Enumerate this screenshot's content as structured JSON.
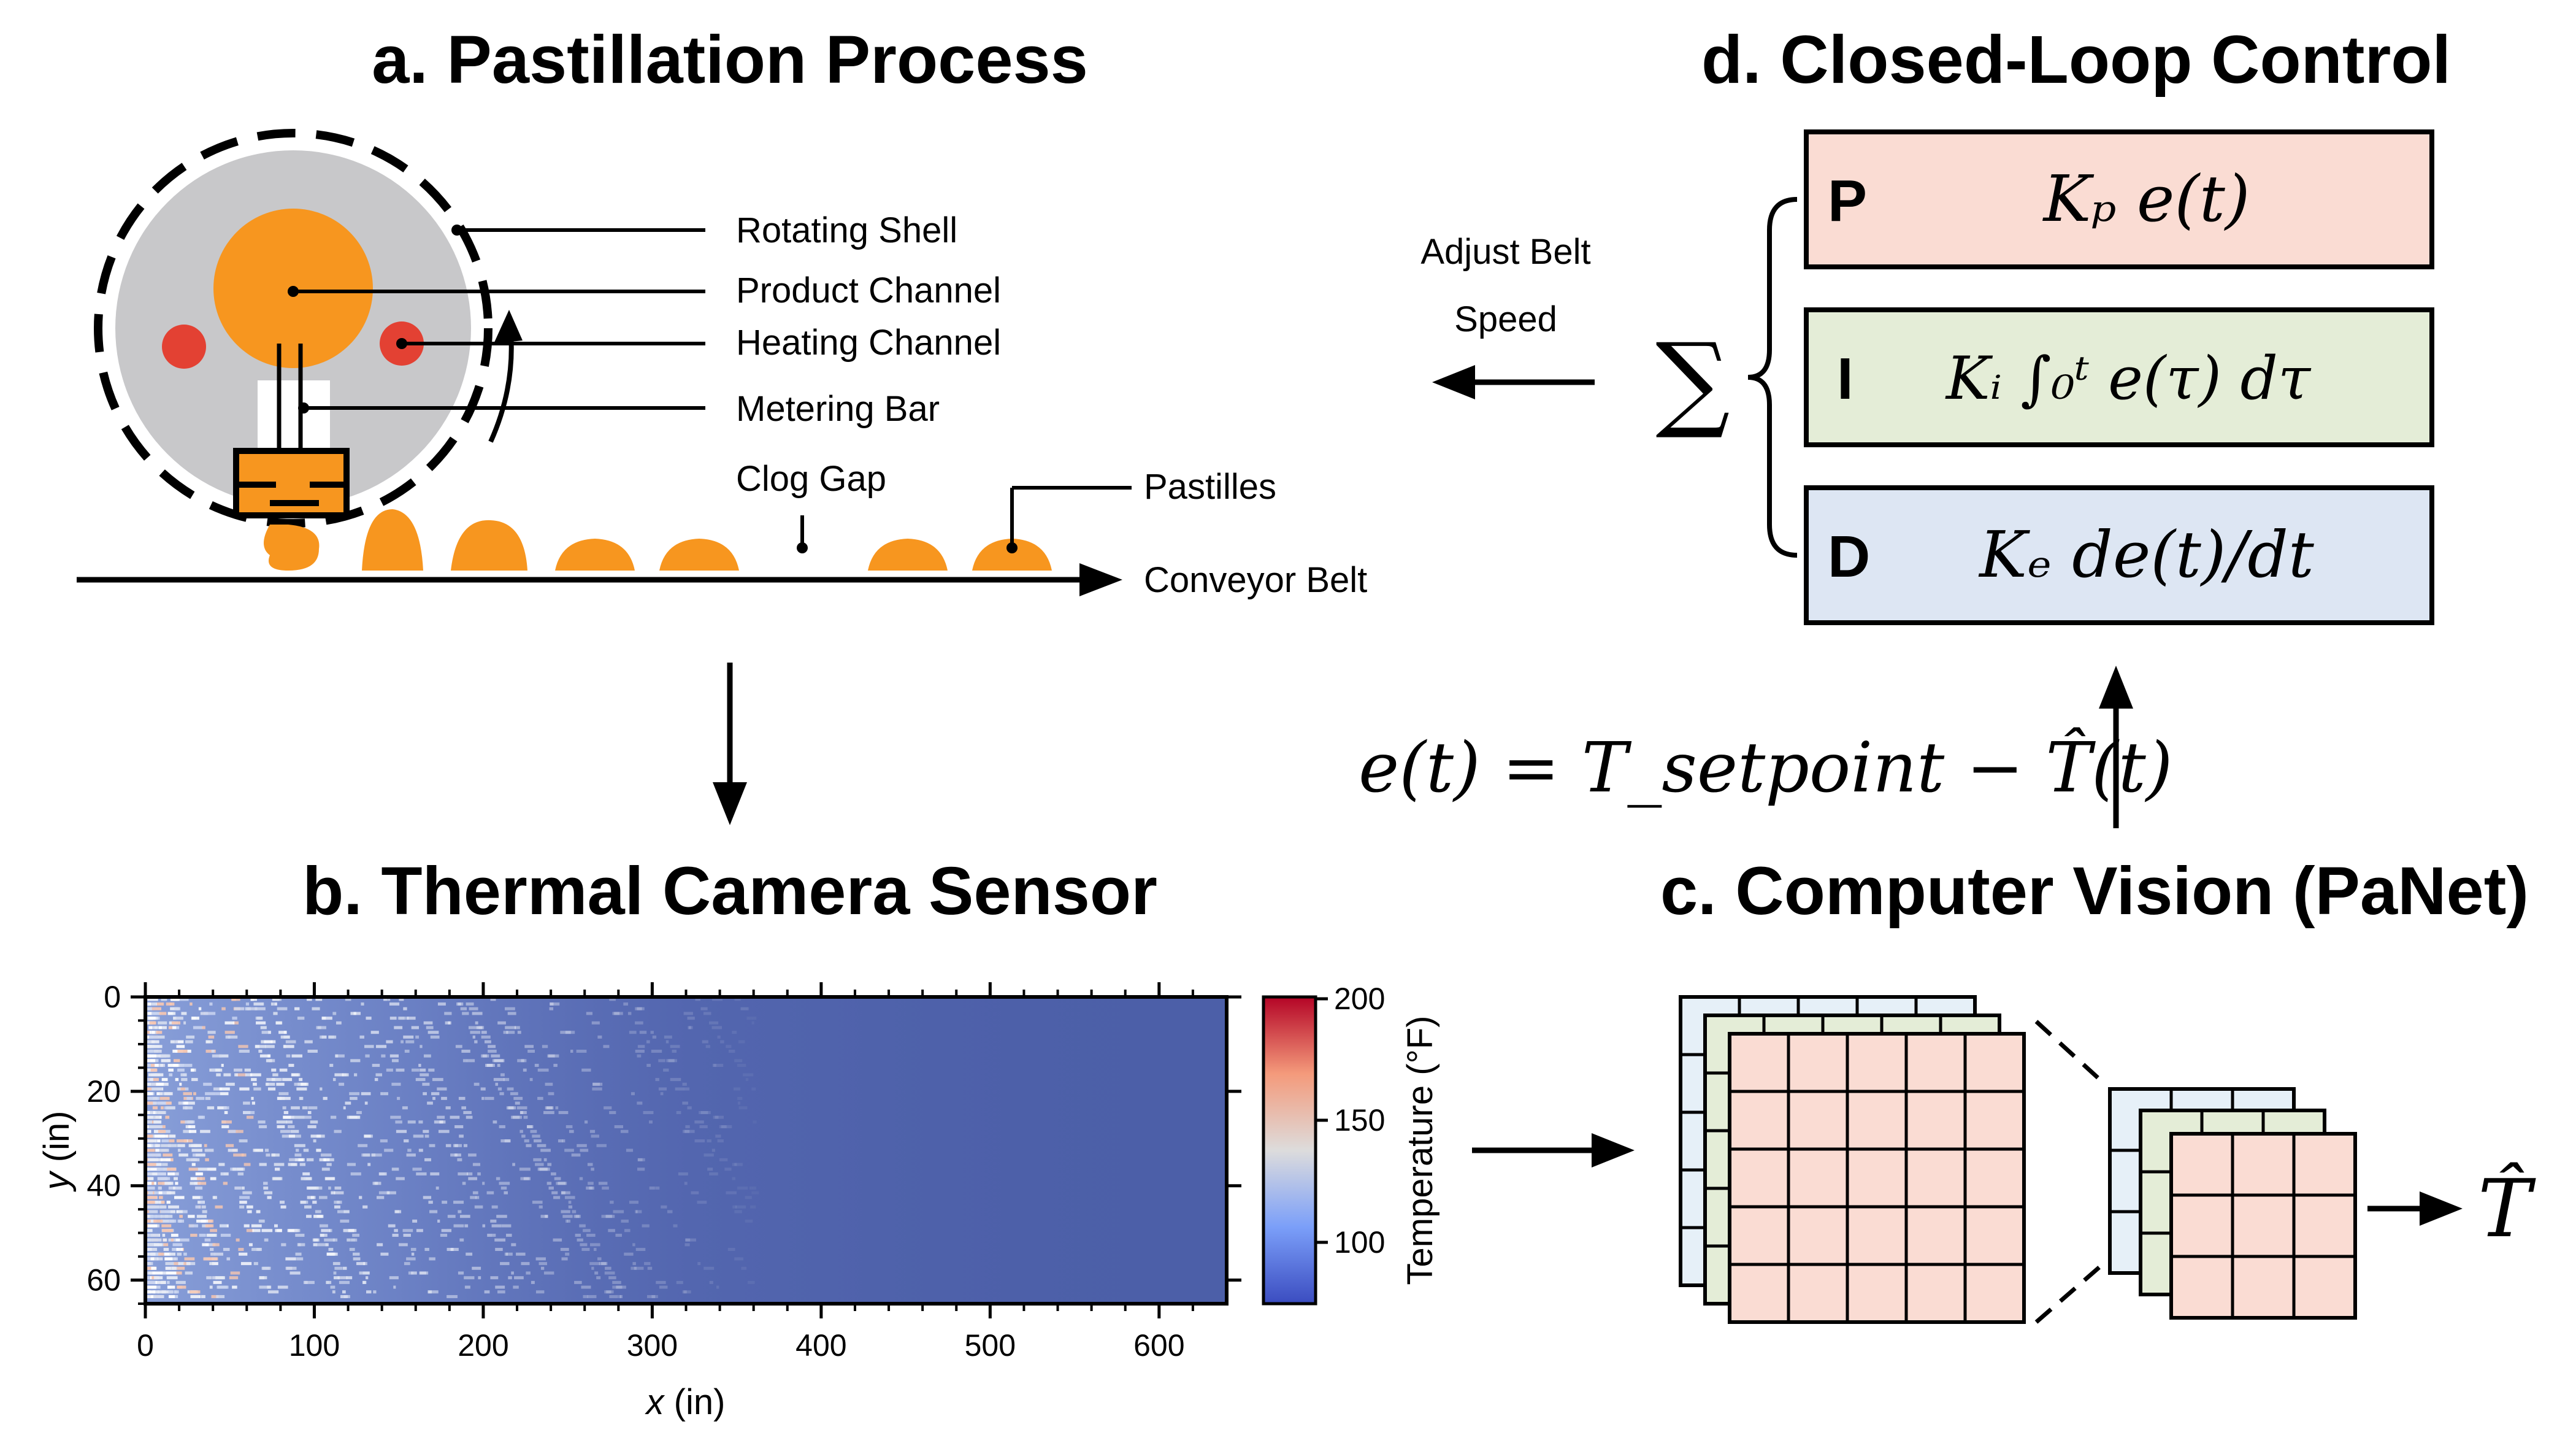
{
  "panels": {
    "a": {
      "title": "a. Pastillation Process",
      "labels": {
        "rotating_shell": "Rotating Shell",
        "product_channel": "Product Channel",
        "heating_channel": "Heating Channel",
        "metering_bar": "Metering Bar",
        "clog_gap": "Clog Gap",
        "pastilles": "Pastilles",
        "conveyor_belt": "Conveyor Belt"
      }
    },
    "b": {
      "title": "b. Thermal Camera Sensor",
      "x_label_var": "x",
      "x_label_unit": " (in)",
      "y_label_var": "y",
      "y_label_unit": " (in)",
      "x_ticks": [
        "0",
        "100",
        "200",
        "300",
        "400",
        "500",
        "600"
      ],
      "y_ticks": [
        "0",
        "20",
        "40",
        "60"
      ],
      "colorbar_label": "Temperature (°F)",
      "colorbar_ticks": [
        "200",
        "150",
        "100"
      ]
    },
    "c": {
      "title": "c. Computer Vision (PaNet)",
      "output_symbol": "T̂"
    },
    "d": {
      "title": "d. Closed-Loop Control",
      "adjust_line1": "Adjust Belt",
      "adjust_line2": "Speed",
      "sum_symbol": "∑",
      "terms": [
        {
          "letter": "P",
          "formula": "Kₚ e(t)"
        },
        {
          "letter": "I",
          "formula": "Kᵢ ∫₀ᵗ e(τ) dτ"
        },
        {
          "letter": "D",
          "formula": "Kₑ de(t)/dt"
        }
      ],
      "error_eq": "e(t) = T_setpoint − T̂(t)"
    }
  },
  "chart_data": {
    "type": "heatmap",
    "title": "",
    "xlabel": "x (in)",
    "ylabel": "y (in)",
    "xlim": [
      0,
      640
    ],
    "ylim": [
      65,
      0
    ],
    "colorbar": {
      "label": "Temperature (°F)",
      "range": [
        75,
        200
      ],
      "colormap": "coolwarm"
    },
    "description_values": {
      "background_temperature": 85,
      "hot_region_x_range": [
        0,
        300
      ],
      "peak_temperature": 195
    }
  },
  "colors": {
    "orange": "#F7961F",
    "red_dot": "#E34133",
    "shell_gray": "#C8C8CA",
    "p_fill": "#FADCD3",
    "i_fill": "#E4EDD7",
    "d_fill": "#DDE6F3",
    "heat_bg": "#4C5FA8",
    "cnn_blue": "#E6F0F8",
    "cnn_green": "#E4EDD7",
    "cnn_pink": "#FADCD3"
  }
}
